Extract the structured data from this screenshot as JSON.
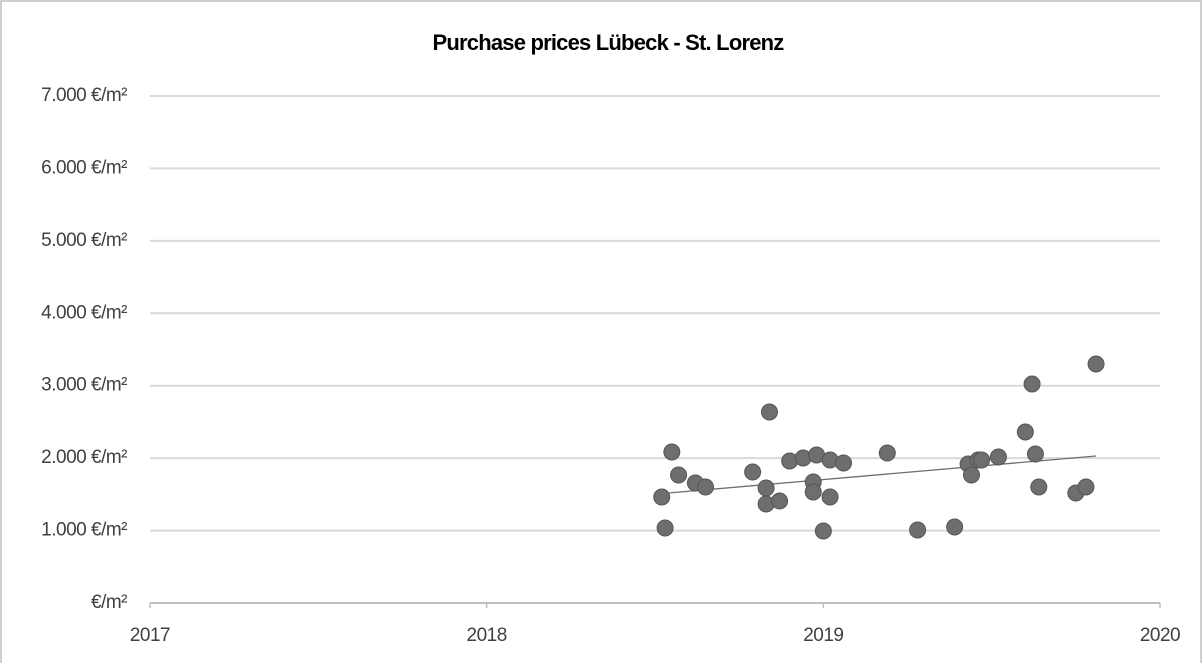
{
  "chart_data": {
    "type": "scatter",
    "title": "Purchase prices Lübeck - St. Lorenz",
    "x": [
      2018.52,
      2018.53,
      2018.55,
      2018.57,
      2018.62,
      2018.65,
      2018.79,
      2018.83,
      2018.83,
      2018.84,
      2018.87,
      2018.9,
      2018.94,
      2018.98,
      2018.97,
      2018.97,
      2019.0,
      2019.02,
      2019.02,
      2019.06,
      2019.19,
      2019.28,
      2019.39,
      2019.43,
      2019.44,
      2019.46,
      2019.47,
      2019.52,
      2019.6,
      2019.62,
      2019.63,
      2019.64,
      2019.75,
      2019.78,
      2019.81
    ],
    "values": [
      1463,
      1035,
      2085,
      1767,
      1657,
      1602,
      1809,
      1588,
      1367,
      2637,
      1408,
      1960,
      2002,
      2043,
      1671,
      1533,
      994,
      1974,
      1463,
      1933,
      2071,
      1008,
      1049,
      1919,
      1767,
      1974,
      1974,
      2016,
      2361,
      3024,
      2057,
      1602,
      1519,
      1602,
      3300
    ],
    "color": "#6e6e6e",
    "trendline": {
      "x": [
        2018.54,
        2019.81
      ],
      "values": [
        1519,
        2030
      ],
      "color": "#6e6e6e"
    },
    "xlim": [
      2017,
      2020
    ],
    "xticks": [
      2017,
      2018,
      2019,
      2020
    ],
    "ylim": [
      0,
      7000
    ],
    "yticks": [
      {
        "value": 0,
        "label": "€/m²"
      },
      {
        "value": 1000,
        "label": "1.000 €/m²"
      },
      {
        "value": 2000,
        "label": "2.000 €/m²"
      },
      {
        "value": 3000,
        "label": "3.000 €/m²"
      },
      {
        "value": 4000,
        "label": "4.000 €/m²"
      },
      {
        "value": 5000,
        "label": "5.000 €/m²"
      },
      {
        "value": 6000,
        "label": "6.000 €/m²"
      },
      {
        "value": 7000,
        "label": "7.000 €/m²"
      }
    ],
    "grid": true
  }
}
